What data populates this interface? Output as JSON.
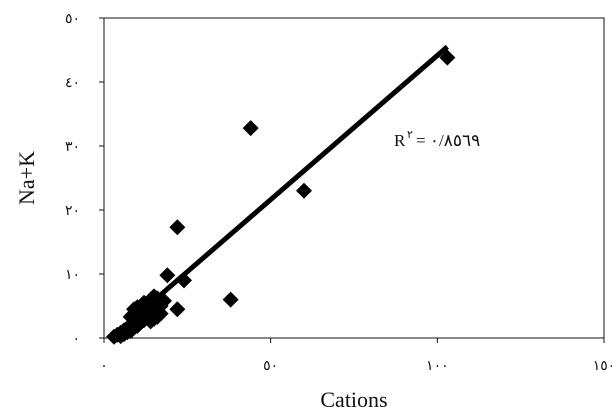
{
  "chart_data": {
    "type": "scatter",
    "title": "",
    "xlabel": "Cations",
    "ylabel": "Na+K",
    "xlim": [
      0,
      150
    ],
    "ylim": [
      0,
      50
    ],
    "x_ticks": [
      {
        "value": 0,
        "label": "٠"
      },
      {
        "value": 50,
        "label": "٥٠"
      },
      {
        "value": 100,
        "label": "١٠٠"
      },
      {
        "value": 150,
        "label": "١٥٠"
      }
    ],
    "y_ticks": [
      {
        "value": 0,
        "label": "٠"
      },
      {
        "value": 10,
        "label": "١٠"
      },
      {
        "value": 20,
        "label": "٢٠"
      },
      {
        "value": 30,
        "label": "٣٠"
      },
      {
        "value": 40,
        "label": "٤٠"
      },
      {
        "value": 50,
        "label": "٥٠"
      }
    ],
    "grid": false,
    "legend": "none",
    "marker": "diamond",
    "marker_color": "#000000",
    "points": [
      [
        3,
        0.2
      ],
      [
        4,
        0.5
      ],
      [
        5,
        0.8
      ],
      [
        5,
        0.3
      ],
      [
        6,
        1.2
      ],
      [
        6,
        0.6
      ],
      [
        7,
        1.5
      ],
      [
        7,
        0.9
      ],
      [
        8,
        2.0
      ],
      [
        8,
        1.1
      ],
      [
        9,
        2.5
      ],
      [
        9,
        1.6
      ],
      [
        10,
        3.0
      ],
      [
        10,
        1.9
      ],
      [
        11,
        2.4
      ],
      [
        11,
        3.4
      ],
      [
        12,
        2.8
      ],
      [
        12,
        3.8
      ],
      [
        13,
        3.1
      ],
      [
        13,
        4.2
      ],
      [
        14,
        2.6
      ],
      [
        14,
        3.6
      ],
      [
        15,
        3.0
      ],
      [
        15,
        4.5
      ],
      [
        16,
        3.3
      ],
      [
        16,
        5.3
      ],
      [
        17,
        3.8
      ],
      [
        17,
        5.0
      ],
      [
        8,
        3.3
      ],
      [
        9,
        4.5
      ],
      [
        10,
        4.8
      ],
      [
        12,
        5.5
      ],
      [
        14,
        6.0
      ],
      [
        15,
        6.5
      ],
      [
        16,
        6.2
      ],
      [
        18,
        5.8
      ],
      [
        19,
        9.8
      ],
      [
        22,
        17.3
      ],
      [
        22,
        4.5
      ],
      [
        24,
        9.0
      ],
      [
        38,
        6.0
      ],
      [
        44,
        32.8
      ],
      [
        60,
        23.0
      ],
      [
        103,
        43.8
      ]
    ],
    "trendline": {
      "x1": 2,
      "y1": 0,
      "x2": 103,
      "y2": 45.5
    },
    "annotation": {
      "text": "R",
      "superscript": "٢",
      "suffix": "= ٠/٨٥٦٩",
      "x": 87,
      "y": 30
    }
  }
}
